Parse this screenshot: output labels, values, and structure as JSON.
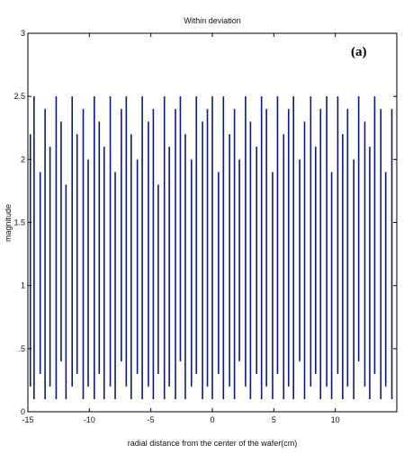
{
  "chart_data": {
    "type": "line",
    "title": "Within deviation",
    "panel_label": "(a)",
    "xlabel": "radial distance from the center of the wafer(cm)",
    "ylabel": "magnitude",
    "xlim": [
      -15,
      15
    ],
    "ylim": [
      0,
      3
    ],
    "xticks": [
      -15,
      -10,
      -5,
      0,
      5,
      10
    ],
    "xtick_labels": [
      "-15",
      "-10",
      "-5",
      "0",
      "5",
      "10"
    ],
    "yticks": [
      0,
      0.5,
      1,
      1.5,
      2,
      2.5,
      3
    ],
    "ytick_labels": [
      "0",
      ".5",
      "1",
      "1.5",
      "2",
      "2.5",
      "3"
    ],
    "grid": false,
    "series": [
      {
        "color": "#0b1a7a",
        "x": [
          -14.8,
          -14.5,
          -14.0,
          -13.6,
          -13.2,
          -12.7,
          -12.3,
          -11.9,
          -11.4,
          -11.0,
          -10.5,
          -10.1,
          -9.6,
          -9.2,
          -8.8,
          -8.3,
          -7.9,
          -7.4,
          -7.0,
          -6.6,
          -6.1,
          -5.7,
          -5.2,
          -4.8,
          -4.4,
          -3.9,
          -3.5,
          -3.0,
          -2.6,
          -2.2,
          -1.7,
          -1.3,
          -0.8,
          -0.4,
          0.0,
          0.5,
          0.9,
          1.4,
          1.8,
          2.2,
          2.7,
          3.1,
          3.6,
          4.0,
          4.4,
          4.9,
          5.3,
          5.8,
          6.2,
          6.6,
          7.1,
          7.5,
          8.0,
          8.4,
          8.8,
          9.3,
          9.7,
          10.2,
          10.6,
          11.0,
          11.5,
          11.9,
          12.4,
          12.8,
          13.2,
          13.7,
          14.1,
          14.6
        ],
        "y_low": [
          0.2,
          0.1,
          0.3,
          0.1,
          0.2,
          0.1,
          0.4,
          0.1,
          0.2,
          0.3,
          0.1,
          0.2,
          0.1,
          0.3,
          0.1,
          0.2,
          0.1,
          0.4,
          0.2,
          0.1,
          0.3,
          0.1,
          0.2,
          0.1,
          0.3,
          0.1,
          0.2,
          0.1,
          0.4,
          0.1,
          0.2,
          0.3,
          0.1,
          0.2,
          0.1,
          0.3,
          0.1,
          0.2,
          0.1,
          0.4,
          0.2,
          0.1,
          0.3,
          0.1,
          0.2,
          0.1,
          0.3,
          0.1,
          0.2,
          0.1,
          0.4,
          0.1,
          0.2,
          0.3,
          0.1,
          0.2,
          0.1,
          0.3,
          0.1,
          0.2,
          0.1,
          0.4,
          0.2,
          0.1,
          0.3,
          0.1,
          0.2,
          0.1
        ],
        "y_high": [
          2.2,
          2.5,
          1.9,
          2.4,
          2.1,
          2.5,
          2.3,
          1.8,
          2.5,
          2.2,
          2.4,
          2.0,
          2.5,
          2.3,
          2.1,
          2.5,
          1.9,
          2.4,
          2.5,
          2.2,
          2.0,
          2.5,
          2.3,
          2.4,
          1.8,
          2.5,
          2.1,
          2.4,
          2.5,
          2.2,
          2.0,
          2.5,
          2.3,
          2.4,
          2.5,
          1.9,
          2.5,
          2.2,
          2.4,
          2.0,
          2.5,
          2.3,
          2.1,
          2.5,
          2.4,
          1.9,
          2.5,
          2.2,
          2.4,
          2.5,
          2.0,
          2.3,
          2.5,
          2.1,
          2.4,
          2.5,
          1.9,
          2.5,
          2.2,
          2.4,
          2.0,
          2.5,
          2.3,
          2.1,
          2.5,
          2.4,
          1.9,
          2.4
        ]
      }
    ]
  }
}
